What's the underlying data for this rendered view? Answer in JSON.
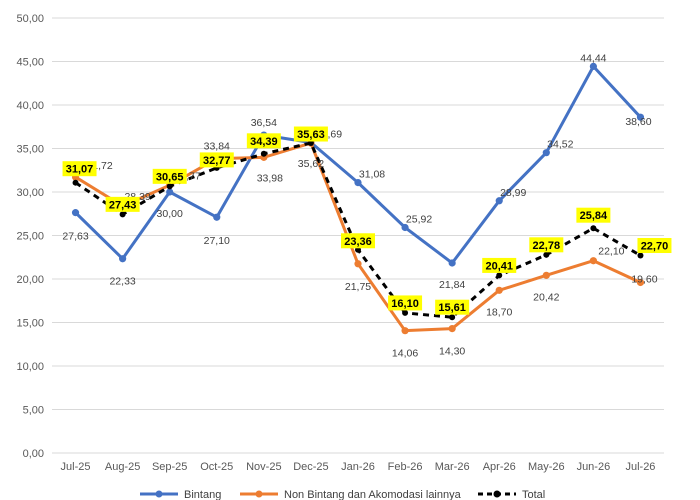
{
  "chart_data": {
    "type": "line",
    "title": "",
    "xlabel": "",
    "ylabel": "",
    "ylim": [
      0,
      50
    ],
    "yticks": [
      "0,00",
      "5,00",
      "10,00",
      "15,00",
      "20,00",
      "25,00",
      "30,00",
      "35,00",
      "40,00",
      "45,00",
      "50,00"
    ],
    "categories": [
      "Jul-25",
      "Aug-25",
      "Sep-25",
      "Oct-25",
      "Nov-25",
      "Dec-25",
      "Jan-26",
      "Feb-26",
      "Mar-26",
      "Apr-26",
      "May-26",
      "Jun-26",
      "Jul-26"
    ],
    "grid": true,
    "legend_position": "bottom",
    "series": [
      {
        "name": "Bintang",
        "color": "#4472C4",
        "style": "solid",
        "values": [
          27.63,
          22.33,
          30.0,
          27.1,
          36.54,
          35.69,
          31.08,
          25.92,
          21.84,
          28.99,
          34.52,
          44.44,
          38.6
        ],
        "labels": [
          "27,63",
          "22,33",
          "30,00",
          "27,10",
          "36,54",
          "35,69",
          "31,08",
          "25,92",
          "21,84",
          "28,99",
          "34,52",
          "44,44",
          "38,60"
        ]
      },
      {
        "name": "Non Bintang dan Akomodasi lainnya",
        "color": "#ED7D31",
        "style": "solid",
        "values": [
          31.72,
          28.39,
          30.77,
          33.84,
          33.98,
          35.62,
          21.75,
          14.06,
          14.3,
          18.7,
          20.42,
          22.1,
          19.6
        ],
        "labels": [
          "31,72",
          "28,39",
          "30,77",
          "33,84",
          "33,98",
          "35,62",
          "21,75",
          "14,06",
          "14,30",
          "18,70",
          "20,42",
          "22,10",
          "19,60"
        ]
      },
      {
        "name": "Total",
        "color": "#000000",
        "style": "dashed",
        "highlight_color": "#FFFF00",
        "values": [
          31.07,
          27.43,
          30.65,
          32.77,
          34.39,
          35.63,
          23.36,
          16.1,
          15.61,
          20.41,
          22.78,
          25.84,
          22.7
        ],
        "labels": [
          "31,07",
          "27,43",
          "30,65",
          "32,77",
          "34,39",
          "35,63",
          "23,36",
          "16,10",
          "15,61",
          "20,41",
          "22,78",
          "25,84",
          "22,70"
        ]
      }
    ]
  }
}
